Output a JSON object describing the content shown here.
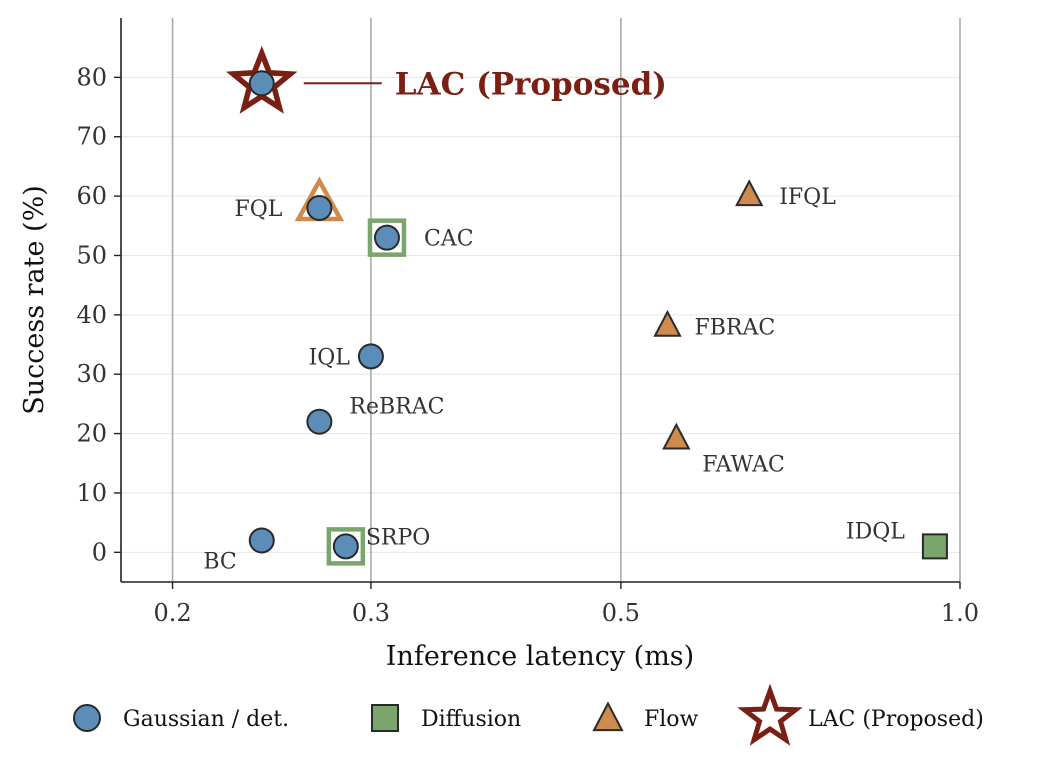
{
  "chart_data": {
    "type": "scatter",
    "xlabel": "Inference latency (ms)",
    "ylabel": "Success rate (%)",
    "xscale": "log",
    "xlim": [
      0.18,
      1.0
    ],
    "ylim": [
      -5,
      90
    ],
    "xticks": [
      0.2,
      0.3,
      0.5,
      1.0
    ],
    "xtick_labels": [
      "0.2",
      "0.3",
      "0.5",
      "1.0"
    ],
    "yticks": [
      0,
      10,
      20,
      30,
      40,
      50,
      60,
      70,
      80
    ],
    "ytick_labels": [
      "0",
      "10",
      "20",
      "30",
      "40",
      "50",
      "60",
      "70",
      "80"
    ],
    "grid": "horizontal light, vertical gray at x ticks",
    "legend_position": "bottom",
    "colors": {
      "gaussian": "#5b8db8",
      "diffusion": "#7aa66e",
      "flow": "#cf8b4e",
      "proposed": "#7a1f14",
      "edge": "#2a2a2a"
    },
    "points": [
      {
        "label": "BC",
        "x": 0.24,
        "y": 2,
        "family": "gaussian"
      },
      {
        "label": "SRPO",
        "x": 0.285,
        "y": 1,
        "family": "gaussian",
        "halo": "diffusion"
      },
      {
        "label": "ReBRAC",
        "x": 0.27,
        "y": 22,
        "family": "gaussian"
      },
      {
        "label": "IQL",
        "x": 0.3,
        "y": 33,
        "family": "gaussian"
      },
      {
        "label": "CAC",
        "x": 0.31,
        "y": 53,
        "family": "gaussian",
        "halo": "diffusion"
      },
      {
        "label": "FQL",
        "x": 0.27,
        "y": 58,
        "family": "gaussian",
        "halo": "flow"
      },
      {
        "label": "IFQL",
        "x": 0.65,
        "y": 60,
        "family": "flow"
      },
      {
        "label": "FBRAC",
        "x": 0.55,
        "y": 38,
        "family": "flow"
      },
      {
        "label": "FAWAC",
        "x": 0.56,
        "y": 19,
        "family": "flow"
      },
      {
        "label": "IDQL",
        "x": 0.95,
        "y": 1,
        "family": "diffusion"
      }
    ],
    "highlight": {
      "label": "LAC (Proposed)",
      "x": 0.24,
      "y": 79
    },
    "legend": [
      {
        "label": "Gaussian / det.",
        "marker": "circle",
        "family": "gaussian"
      },
      {
        "label": "Diffusion",
        "marker": "square",
        "family": "diffusion"
      },
      {
        "label": "Flow",
        "marker": "triangle",
        "family": "flow"
      },
      {
        "label": "LAC (Proposed)",
        "marker": "star",
        "family": "proposed"
      }
    ]
  }
}
